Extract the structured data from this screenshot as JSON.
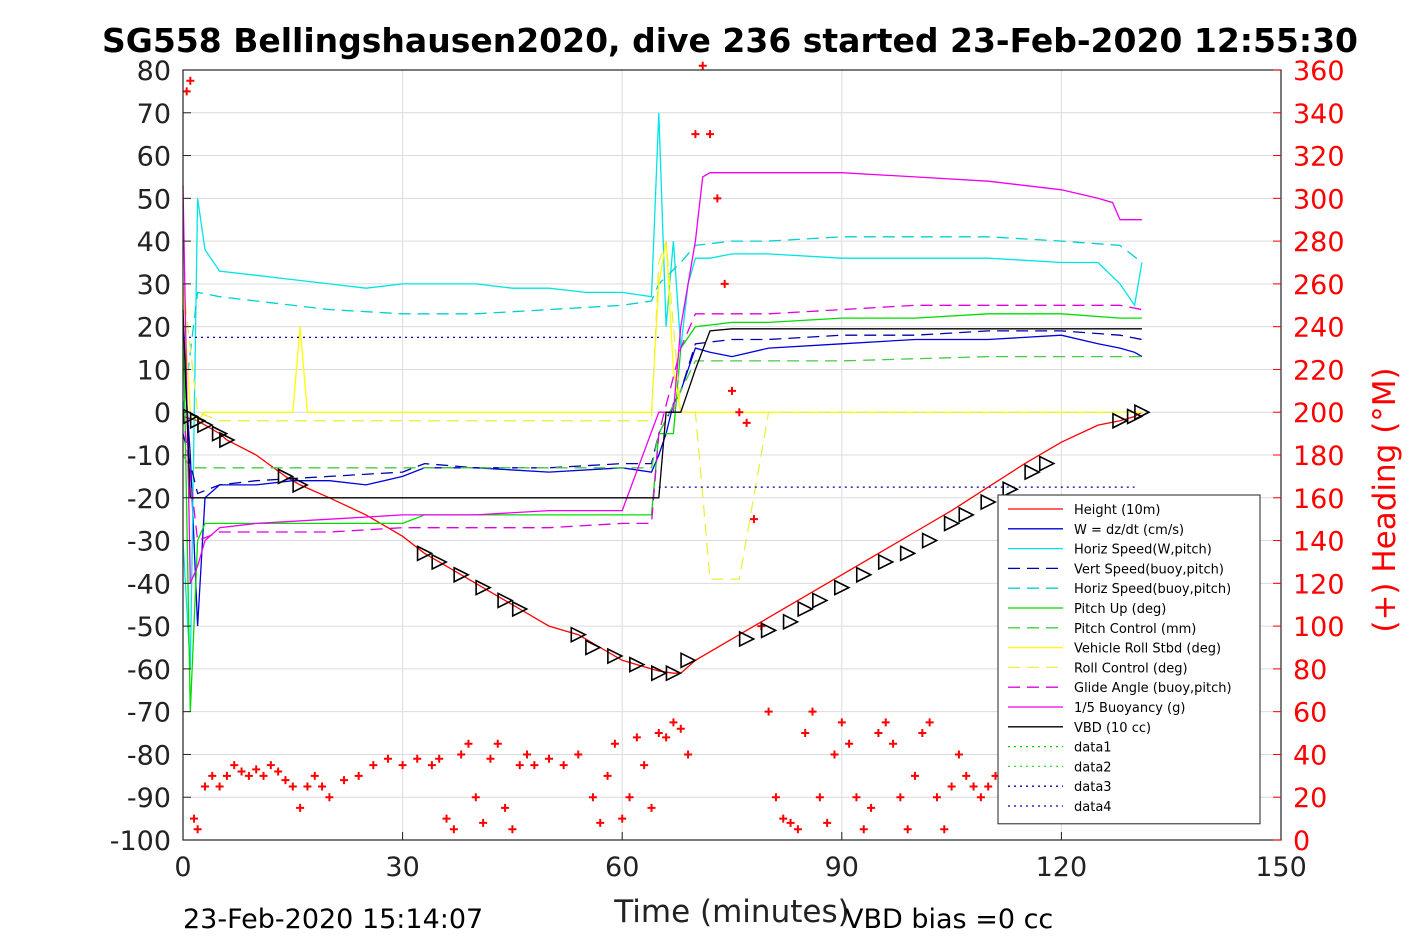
{
  "chart_data": {
    "type": "line",
    "title": "SG558 Bellingshausen2020, dive 236 started 23-Feb-2020 12:55:30",
    "xlabel": "Time (minutes)",
    "ylabel": "",
    "y2label": "(+) Heading (°M)",
    "xlim": [
      0,
      150
    ],
    "ylim": [
      -100,
      80
    ],
    "y2lim": [
      0,
      360
    ],
    "xticks": [
      "0",
      "30",
      "60",
      "90",
      "120",
      "150"
    ],
    "yticks": [
      "80",
      "70",
      "60",
      "50",
      "40",
      "30",
      "20",
      "10",
      "0",
      "-10",
      "-20",
      "-30",
      "-40",
      "-50",
      "-60",
      "-70",
      "-80",
      "-90",
      "-100"
    ],
    "y2ticks": [
      "360",
      "340",
      "320",
      "300",
      "280",
      "260",
      "240",
      "220",
      "200",
      "180",
      "160",
      "140",
      "120",
      "100",
      "80",
      "60",
      "40",
      "20",
      "0"
    ],
    "grid": true,
    "legend_position": "bottom-right",
    "footer_left": "23-Feb-2020 15:14:07",
    "footer_right": "VBD bias =0 cc",
    "series": [
      {
        "name": "Height (10m)",
        "color": "#ff0000",
        "style": "solid",
        "x": [
          0,
          1,
          2,
          3,
          5,
          6,
          10,
          14,
          16,
          20,
          25,
          30,
          33,
          35,
          38,
          42,
          46,
          50,
          54,
          57,
          60,
          62,
          64,
          65,
          67,
          68,
          70,
          75,
          80,
          85,
          90,
          95,
          100,
          105,
          110,
          115,
          120,
          125,
          128,
          130,
          131
        ],
        "y": [
          -1,
          -1.5,
          -2,
          -3,
          -5,
          -6.5,
          -10,
          -15,
          -17,
          -20,
          -24,
          -29,
          -33,
          -35,
          -38,
          -42,
          -46,
          -50,
          -52,
          -55,
          -58,
          -59,
          -60,
          -60.5,
          -61,
          -61,
          -58,
          -53,
          -48,
          -43,
          -38,
          -33,
          -28,
          -23,
          -17.5,
          -12,
          -7,
          -3,
          -2,
          -1,
          0
        ]
      },
      {
        "name": "W = dz/dt (cm/s)",
        "color": "#0000dd",
        "style": "solid",
        "x": [
          0,
          1,
          2,
          3,
          5,
          10,
          15,
          20,
          25,
          30,
          33,
          40,
          50,
          60,
          64,
          65,
          66,
          67,
          68,
          69,
          70,
          72,
          75,
          80,
          90,
          100,
          110,
          120,
          125,
          128,
          130,
          131
        ],
        "y": [
          15,
          -10,
          -50,
          -20,
          -17,
          -17,
          -16,
          -16,
          -17,
          -15,
          -13,
          -13,
          -14,
          -13,
          -14,
          -10,
          -5,
          2,
          5,
          10,
          15,
          14,
          13,
          15,
          16,
          17,
          17,
          18,
          16,
          15,
          14,
          13
        ]
      },
      {
        "name": "Horiz Speed(W,pitch)",
        "color": "#00e5e5",
        "style": "solid",
        "x": [
          0,
          1,
          2,
          3,
          5,
          10,
          15,
          20,
          25,
          30,
          35,
          40,
          45,
          50,
          55,
          60,
          64,
          65,
          66,
          67,
          68,
          69,
          70,
          72,
          75,
          80,
          90,
          100,
          110,
          120,
          125,
          128,
          130,
          131
        ],
        "y": [
          -30,
          -60,
          50,
          38,
          33,
          32,
          31,
          30,
          29,
          30,
          30,
          30,
          29,
          29,
          28,
          28,
          27,
          70,
          20,
          40,
          15,
          30,
          36,
          36,
          37,
          37,
          36,
          36,
          36,
          35,
          35,
          30,
          25,
          35
        ]
      },
      {
        "name": "Vert Speed(buoy,pitch)",
        "color": "#0000aa",
        "style": "dash",
        "x": [
          0,
          2,
          5,
          10,
          20,
          30,
          33,
          40,
          50,
          60,
          64,
          65,
          68,
          70,
          75,
          80,
          90,
          100,
          110,
          120,
          128,
          131
        ],
        "y": [
          -5,
          -19,
          -17,
          -16,
          -15,
          -14,
          -12,
          -13,
          -13,
          -12,
          -12,
          -5,
          5,
          16,
          17,
          17,
          18,
          18,
          19,
          19,
          18,
          17
        ]
      },
      {
        "name": "Horiz Speed(buoy,pitch)",
        "color": "#00d0d0",
        "style": "dash",
        "x": [
          0,
          2,
          5,
          10,
          20,
          30,
          40,
          50,
          60,
          64,
          65,
          68,
          70,
          75,
          80,
          90,
          100,
          110,
          120,
          128,
          131
        ],
        "y": [
          0,
          28,
          27,
          26,
          24,
          23,
          23,
          24,
          25,
          26,
          30,
          35,
          39,
          40,
          40,
          41,
          41,
          41,
          40,
          39,
          35
        ]
      },
      {
        "name": "Pitch Up (deg)",
        "color": "#00dd00",
        "style": "solid",
        "x": [
          0,
          1,
          2,
          3,
          5,
          10,
          20,
          30,
          33,
          40,
          50,
          60,
          64,
          65,
          67,
          68,
          70,
          75,
          80,
          90,
          100,
          110,
          120,
          128,
          131
        ],
        "y": [
          25,
          -70,
          -30,
          -26,
          -26,
          -26,
          -26,
          -26,
          -24,
          -24,
          -24,
          -24,
          -24,
          -5,
          -5,
          15,
          20,
          21,
          21,
          22,
          22,
          23,
          23,
          22,
          22
        ]
      },
      {
        "name": "Pitch Control (mm)",
        "color": "#44cc44",
        "style": "dash",
        "x": [
          0,
          1,
          2,
          5,
          20,
          40,
          60,
          64,
          65,
          68,
          70,
          90,
          110,
          131
        ],
        "y": [
          -10,
          -13,
          -13,
          -13,
          -13,
          -13,
          -13,
          -13,
          -5,
          5,
          12,
          12,
          13,
          13
        ]
      },
      {
        "name": "Vehicle Roll Stbd (deg)",
        "color": "#ffff00",
        "style": "solid",
        "x": [
          0,
          1,
          2,
          3,
          5,
          10,
          15,
          16,
          17,
          20,
          25,
          30,
          33,
          35,
          40,
          45,
          50,
          55,
          60,
          64,
          65,
          66,
          67,
          68,
          70,
          75,
          80,
          90,
          100,
          110,
          120,
          128,
          130,
          131
        ],
        "y": [
          30,
          0,
          -2,
          0,
          0,
          0,
          0,
          20,
          0,
          0,
          0,
          0,
          0,
          0,
          0,
          0,
          0,
          0,
          0,
          0,
          30,
          40,
          10,
          0,
          0,
          0,
          0,
          0,
          0,
          0,
          0,
          0,
          0,
          0
        ]
      },
      {
        "name": "Roll Control (deg)",
        "color": "#eeee44",
        "style": "dash",
        "x": [
          0,
          2,
          5,
          10,
          20,
          30,
          40,
          50,
          60,
          64,
          65,
          66,
          68,
          70,
          72,
          76,
          80,
          90,
          100,
          110,
          120,
          128,
          131
        ],
        "y": [
          30,
          0,
          -2,
          -2,
          -2,
          -2,
          -2,
          -2,
          -2,
          -2,
          35,
          40,
          0,
          0,
          -39,
          -39,
          0,
          0,
          0,
          0,
          0,
          0,
          0
        ]
      },
      {
        "name": "Glide Angle (buoy,pitch)",
        "color": "#dd00dd",
        "style": "dash",
        "x": [
          0,
          2,
          5,
          10,
          20,
          30,
          40,
          50,
          60,
          64,
          65,
          68,
          70,
          75,
          80,
          90,
          100,
          110,
          120,
          128,
          131
        ],
        "y": [
          0,
          -30,
          -28,
          -28,
          -28,
          -27,
          -27,
          -27,
          -26,
          -26,
          -5,
          15,
          23,
          23,
          23,
          24,
          25,
          25,
          25,
          25,
          24
        ]
      },
      {
        "name": "1/5 Buoyancy (g)",
        "color": "#ee00ee",
        "style": "solid",
        "x": [
          0,
          1,
          2,
          3,
          5,
          10,
          20,
          30,
          40,
          50,
          60,
          65,
          66,
          67,
          68,
          70,
          71,
          72,
          80,
          90,
          100,
          110,
          120,
          125,
          127,
          128,
          131
        ],
        "y": [
          53,
          -40,
          -36,
          -30,
          -27,
          -26,
          -25,
          -24,
          -24,
          -23,
          -23,
          0,
          0,
          0,
          20,
          40,
          55,
          56,
          56,
          56,
          55,
          54,
          52,
          50,
          49,
          45,
          45
        ]
      },
      {
        "name": "VBD (10 cc)",
        "color": "#000000",
        "style": "solid",
        "x": [
          0,
          1,
          2,
          5,
          10,
          20,
          40,
          60,
          65,
          66,
          68,
          70,
          72,
          75,
          100,
          120,
          131
        ],
        "y": [
          24,
          -20,
          -20,
          -20,
          -20,
          -20,
          -20,
          -20,
          -20,
          0,
          0,
          10,
          19,
          19.5,
          19.5,
          19.5,
          19.5
        ]
      },
      {
        "name": "data1",
        "color": "#00cc00",
        "style": "dot",
        "x": [],
        "y": []
      },
      {
        "name": "data2",
        "color": "#33dd33",
        "style": "dot",
        "x": [],
        "y": []
      },
      {
        "name": "data3",
        "color": "#0000aa",
        "style": "dot",
        "x": [
          0,
          65
        ],
        "y": [
          17.5,
          17.5
        ]
      },
      {
        "name": "data4",
        "color": "#0000aa",
        "style": "dot",
        "x": [
          65,
          130
        ],
        "y": [
          -17.5,
          -17.5
        ]
      }
    ],
    "heading_points": {
      "color": "#ff0000",
      "x": [
        0.5,
        1,
        1.5,
        2,
        3,
        4,
        5,
        6,
        7,
        8,
        9,
        10,
        11,
        12,
        13,
        14,
        15,
        16,
        17,
        18,
        19,
        20,
        22,
        24,
        26,
        28,
        30,
        32,
        34,
        35,
        36,
        37,
        38,
        39,
        40,
        41,
        42,
        43,
        44,
        45,
        46,
        47,
        48,
        50,
        52,
        54,
        56,
        57,
        58,
        59,
        60,
        61,
        62,
        63,
        64,
        65,
        66,
        67,
        68,
        69,
        70,
        71,
        72,
        73,
        74,
        75,
        76,
        77,
        78,
        79,
        80,
        81,
        82,
        83,
        84,
        85,
        86,
        87,
        88,
        89,
        90,
        91,
        92,
        93,
        94,
        95,
        96,
        97,
        98,
        99,
        100,
        101,
        102,
        103,
        104,
        105,
        106,
        107,
        108,
        109,
        110,
        111,
        112
      ],
      "y": [
        350,
        355,
        10,
        5,
        25,
        30,
        25,
        30,
        35,
        32,
        30,
        33,
        30,
        35,
        32,
        28,
        25,
        15,
        25,
        30,
        25,
        20,
        28,
        30,
        35,
        38,
        35,
        38,
        35,
        38,
        10,
        5,
        40,
        45,
        20,
        8,
        38,
        45,
        15,
        5,
        35,
        40,
        35,
        38,
        35,
        40,
        20,
        8,
        30,
        45,
        10,
        20,
        48,
        35,
        15,
        50,
        48,
        55,
        52,
        40,
        330,
        362,
        330,
        300,
        260,
        210,
        200,
        195,
        150,
        100,
        60,
        20,
        10,
        8,
        5,
        50,
        60,
        20,
        8,
        40,
        55,
        45,
        20,
        5,
        15,
        50,
        55,
        45,
        20,
        5,
        30,
        50,
        55,
        20,
        5,
        25,
        40,
        30,
        25,
        20,
        25,
        30,
        35
      ]
    },
    "vbd_markers": {
      "x": [
        1,
        2,
        3,
        5,
        6,
        14,
        16,
        33,
        35,
        38,
        41,
        44,
        46,
        54,
        56,
        59,
        62,
        65,
        67,
        69,
        77,
        80,
        83,
        85,
        87,
        90,
        93,
        96,
        99,
        102,
        105,
        107,
        110,
        113,
        116,
        118,
        128,
        130,
        131
      ],
      "y": [
        -1,
        -2,
        -3,
        -5,
        -6.5,
        -15,
        -17,
        -33,
        -35,
        -38,
        -41,
        -44,
        -46,
        -52,
        -55,
        -57,
        -59,
        -61,
        -61,
        -58,
        -53,
        -51,
        -49,
        -46,
        -44,
        -41,
        -38,
        -35,
        -33,
        -30,
        -26,
        -24,
        -21,
        -18,
        -14,
        -12,
        -2,
        -1,
        0
      ]
    },
    "legend_entries": [
      "Height (10m)",
      "W = dz/dt (cm/s)",
      "Horiz Speed(W,pitch)",
      "Vert Speed(buoy,pitch)",
      "Horiz Speed(buoy,pitch)",
      "Pitch Up (deg)",
      "Pitch Control (mm)",
      "Vehicle Roll Stbd (deg)",
      "Roll Control (deg)",
      "Glide Angle (buoy,pitch)",
      "1/5 Buoyancy (g)",
      "VBD (10 cc)",
      "data1",
      "data2",
      "data3",
      "data4"
    ]
  }
}
